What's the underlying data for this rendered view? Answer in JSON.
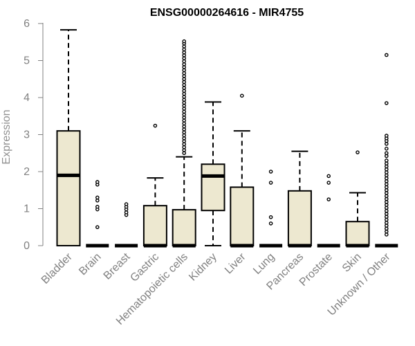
{
  "chart_data": {
    "type": "boxplot",
    "title": "ENSG00000264616 - MIR4755",
    "xlabel": "",
    "ylabel": "Expression",
    "ylim": [
      0,
      6
    ],
    "yticks": [
      0,
      1,
      2,
      3,
      4,
      5,
      6
    ],
    "grid": false,
    "legend": "none",
    "colors": {
      "box_fill": "#ede8d0",
      "box_stroke": "#000000",
      "median": "#000000",
      "axis": "#808080",
      "tick_text": "#808080"
    },
    "categories": [
      "Bladder",
      "Brain",
      "Breast",
      "Gastric",
      "Hematopoietic cells",
      "Kidney",
      "Liver",
      "Lung",
      "Pancreas",
      "Prostate",
      "Skin",
      "Unknown / Other"
    ],
    "boxes": [
      {
        "category": "Bladder",
        "whisker_low": 0,
        "q1": 0,
        "median": 1.9,
        "q3": 3.1,
        "whisker_high": 5.83,
        "outliers": []
      },
      {
        "category": "Brain",
        "whisker_low": 0,
        "q1": 0,
        "median": 0,
        "q3": 0,
        "whisker_high": 0,
        "outliers": [
          0.5,
          0.98,
          1.05,
          1.22,
          1.3,
          1.65,
          1.72
        ]
      },
      {
        "category": "Breast",
        "whisker_low": 0,
        "q1": 0,
        "median": 0,
        "q3": 0,
        "whisker_high": 0,
        "outliers": [
          0.83,
          0.9,
          0.98,
          1.05,
          1.12
        ]
      },
      {
        "category": "Gastric",
        "whisker_low": 0,
        "q1": 0,
        "median": 0,
        "q3": 1.08,
        "whisker_high": 1.83,
        "outliers": [
          3.24
        ]
      },
      {
        "category": "Hematopoietic cells",
        "whisker_low": 0,
        "q1": 0,
        "median": 0,
        "q3": 0.97,
        "whisker_high": 2.4,
        "outliers": [
          2.5,
          2.58,
          2.66,
          2.74,
          2.82,
          2.9,
          2.98,
          3.06,
          3.14,
          3.22,
          3.3,
          3.38,
          3.46,
          3.54,
          3.62,
          3.7,
          3.78,
          3.86,
          3.94,
          4.02,
          4.1,
          4.18,
          4.26,
          4.34,
          4.42,
          4.5,
          4.58,
          4.66,
          4.74,
          4.82,
          4.9,
          4.98,
          5.06,
          5.14,
          5.22,
          5.3,
          5.38,
          5.46,
          5.52
        ]
      },
      {
        "category": "Kidney",
        "whisker_low": 0,
        "q1": 0.95,
        "median": 1.88,
        "q3": 2.2,
        "whisker_high": 3.88,
        "outliers": []
      },
      {
        "category": "Liver",
        "whisker_low": 0,
        "q1": 0,
        "median": 0,
        "q3": 1.58,
        "whisker_high": 3.1,
        "outliers": [
          4.05
        ]
      },
      {
        "category": "Lung",
        "whisker_low": 0,
        "q1": 0,
        "median": 0,
        "q3": 0,
        "whisker_high": 0,
        "outliers": [
          0.6,
          0.77,
          1.7,
          2.0
        ]
      },
      {
        "category": "Pancreas",
        "whisker_low": 0,
        "q1": 0,
        "median": 0,
        "q3": 1.48,
        "whisker_high": 2.55,
        "outliers": []
      },
      {
        "category": "Prostate",
        "whisker_low": 0,
        "q1": 0,
        "median": 0,
        "q3": 0,
        "whisker_high": 0,
        "outliers": [
          1.25,
          1.7,
          1.88
        ]
      },
      {
        "category": "Skin",
        "whisker_low": 0,
        "q1": 0,
        "median": 0,
        "q3": 0.65,
        "whisker_high": 1.43,
        "outliers": [
          2.52
        ]
      },
      {
        "category": "Unknown / Other",
        "whisker_low": 0,
        "q1": 0,
        "median": 0,
        "q3": 0,
        "whisker_high": 0,
        "outliers": [
          0.3,
          0.38,
          0.46,
          0.54,
          0.62,
          0.7,
          0.78,
          0.86,
          0.94,
          1.02,
          1.1,
          1.18,
          1.26,
          1.34,
          1.42,
          1.5,
          1.58,
          1.66,
          1.74,
          1.82,
          1.9,
          1.98,
          2.06,
          2.14,
          2.22,
          2.3,
          2.42,
          2.5,
          2.62,
          2.75,
          2.83,
          2.9,
          2.97,
          3.85,
          5.15
        ]
      }
    ]
  }
}
